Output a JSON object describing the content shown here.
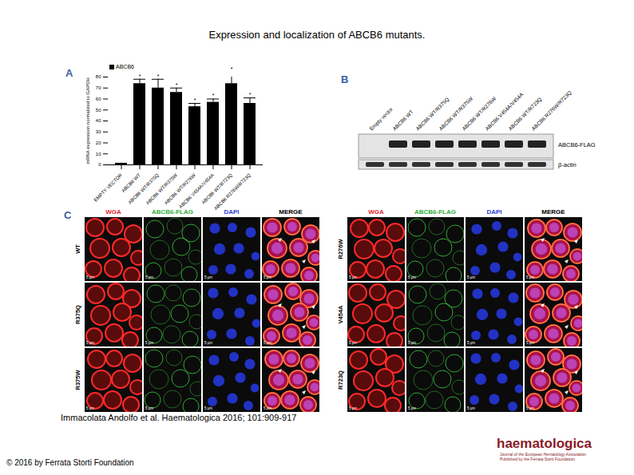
{
  "title": "Expression and localization of ABCB6 mutants.",
  "panel_labels": [
    "A",
    "B",
    "C"
  ],
  "chart_data": {
    "type": "bar",
    "y_label": "mRNA expression normalized to GAPDH",
    "categories": [
      "EMPTY VECTOR",
      "ABCB6 WT",
      "ABCB6 WT/R375Q",
      "ABCB6 WT/R375W",
      "ABCB6 WT/R276W",
      "ABCB6 V454A/V454A",
      "ABCB6 WT/R723Q",
      "ABCB6 R276W/R723Q"
    ],
    "series": [
      {
        "name": "ABCB6",
        "color": "#000000",
        "values": [
          1,
          74,
          70,
          66,
          53,
          57,
          74,
          56
        ],
        "error": [
          0.5,
          4,
          8,
          4,
          3,
          3,
          10,
          5
        ]
      }
    ],
    "significance": [
      null,
      "*",
      "*",
      "*",
      "*",
      "*",
      "*",
      "*"
    ],
    "ylim": [
      0,
      80
    ],
    "yticks": [
      0,
      10,
      20,
      30,
      40,
      50,
      60,
      70,
      80
    ],
    "legend": "top-left"
  },
  "blot": {
    "lanes": [
      "Empty vector",
      "ABCB6 WT",
      "ABCB6 WT/R375Q",
      "ABCB6 WT/R375W",
      "ABCB6 WT/R276W",
      "ABCB6 V454A/V454A",
      "ABCB6 WT/R723Q",
      "ABCB6 R276W/R723Q"
    ],
    "bands": [
      "ABCB6-FLAG",
      "β-actin"
    ]
  },
  "microscopy": {
    "channels": [
      "WGA",
      "ABCB6-FLAG",
      "DAPI",
      "MERGE"
    ],
    "channel_colors": [
      "#e8262a",
      "#2fae3a",
      "#2b3fd6",
      "#000000"
    ],
    "left_rows": [
      "WT",
      "R375Q",
      "R375W"
    ],
    "right_rows": [
      "R276W",
      "V454A",
      "R723Q"
    ],
    "scale_bar": "5 μm"
  },
  "citation": "Immacolata Andolfo et al. Haematologica 2016; 101:909-917",
  "copyright": "© 2016 by Ferrata Storti Foundation",
  "journal": {
    "logo": "haematologica",
    "tagline": [
      "Journal of the European Hematology Association",
      "Published by the Ferrata Storti Foundation"
    ]
  }
}
